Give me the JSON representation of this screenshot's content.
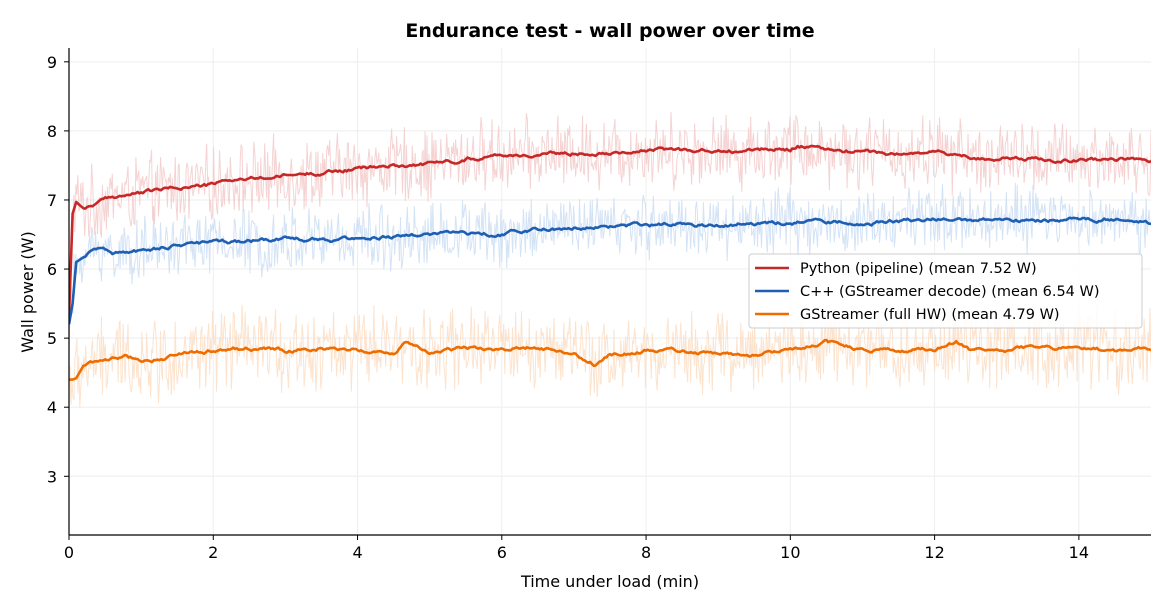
{
  "chart_data": {
    "type": "line",
    "title": "Endurance test - wall power over time",
    "xlabel": "Time under load (min)",
    "ylabel": "Wall power (W)",
    "xlim": [
      0,
      15
    ],
    "ylim": [
      2.15,
      9.2
    ],
    "xticks": [
      0,
      2,
      4,
      6,
      8,
      10,
      12,
      14
    ],
    "yticks": [
      3,
      4,
      5,
      6,
      7,
      8,
      9
    ],
    "grid": true,
    "legend_position": "center-right",
    "series": [
      {
        "name": "Python (pipeline) (mean 7.52 W)",
        "color": "#c62828",
        "band_color": "#f2c4c4",
        "noise_amplitude": 0.45,
        "x": [
          0,
          0.05,
          0.1,
          0.2,
          0.3,
          0.5,
          0.7,
          1.0,
          1.5,
          2.0,
          2.3,
          2.5,
          3.0,
          3.5,
          4.0,
          4.5,
          5.0,
          5.5,
          6.0,
          6.5,
          7.0,
          7.5,
          8.0,
          8.5,
          9.0,
          9.5,
          10.0,
          10.1,
          10.5,
          11.0,
          11.5,
          12.0,
          12.5,
          13.0,
          13.5,
          14.0,
          14.5,
          15.0
        ],
        "values": [
          5.3,
          6.8,
          6.97,
          6.88,
          6.92,
          7.0,
          7.06,
          7.1,
          7.18,
          7.22,
          7.3,
          7.3,
          7.35,
          7.4,
          7.45,
          7.5,
          7.52,
          7.6,
          7.66,
          7.65,
          7.68,
          7.7,
          7.72,
          7.73,
          7.7,
          7.72,
          7.74,
          7.8,
          7.72,
          7.7,
          7.66,
          7.7,
          7.62,
          7.6,
          7.6,
          7.58,
          7.6,
          7.57
        ]
      },
      {
        "name": "C++ (GStreamer decode) (mean 6.54 W)",
        "color": "#1e5fb4",
        "band_color": "#c5daf2",
        "noise_amplitude": 0.4,
        "x": [
          0,
          0.05,
          0.1,
          0.2,
          0.3,
          0.45,
          0.6,
          0.9,
          1.2,
          1.5,
          2.0,
          2.5,
          3.0,
          3.5,
          4.0,
          4.5,
          5.0,
          5.5,
          6.0,
          6.5,
          7.0,
          7.5,
          8.0,
          8.5,
          9.0,
          9.5,
          10.0,
          10.5,
          11.0,
          11.5,
          12.0,
          12.5,
          13.0,
          13.5,
          14.0,
          14.5,
          15.0
        ],
        "values": [
          5.2,
          5.5,
          6.1,
          6.17,
          6.25,
          6.32,
          6.22,
          6.25,
          6.3,
          6.35,
          6.38,
          6.4,
          6.44,
          6.42,
          6.45,
          6.47,
          6.5,
          6.52,
          6.5,
          6.58,
          6.6,
          6.62,
          6.63,
          6.65,
          6.63,
          6.65,
          6.68,
          6.68,
          6.66,
          6.7,
          6.72,
          6.72,
          6.72,
          6.71,
          6.72,
          6.74,
          6.66
        ]
      },
      {
        "name": "GStreamer (full HW) (mean 4.79 W)",
        "color": "#ef6c00",
        "band_color": "#fbd9bd",
        "noise_amplitude": 0.5,
        "x": [
          0,
          0.05,
          0.1,
          0.2,
          0.4,
          0.6,
          0.8,
          1.0,
          1.3,
          1.6,
          2.0,
          2.5,
          3.0,
          3.5,
          4.0,
          4.5,
          4.7,
          5.0,
          5.5,
          6.0,
          6.5,
          7.0,
          7.3,
          7.5,
          8.0,
          8.5,
          9.0,
          9.5,
          10.0,
          10.5,
          11.0,
          11.5,
          12.0,
          12.3,
          12.5,
          13.0,
          13.5,
          14.0,
          14.5,
          15.0
        ],
        "values": [
          4.4,
          4.4,
          4.42,
          4.6,
          4.65,
          4.7,
          4.72,
          4.68,
          4.72,
          4.8,
          4.82,
          4.85,
          4.82,
          4.85,
          4.83,
          4.8,
          4.95,
          4.78,
          4.85,
          4.84,
          4.87,
          4.8,
          4.62,
          4.75,
          4.82,
          4.8,
          4.78,
          4.75,
          4.82,
          4.95,
          4.82,
          4.8,
          4.85,
          4.95,
          4.82,
          4.85,
          4.88,
          4.85,
          4.82,
          4.85
        ]
      }
    ]
  }
}
